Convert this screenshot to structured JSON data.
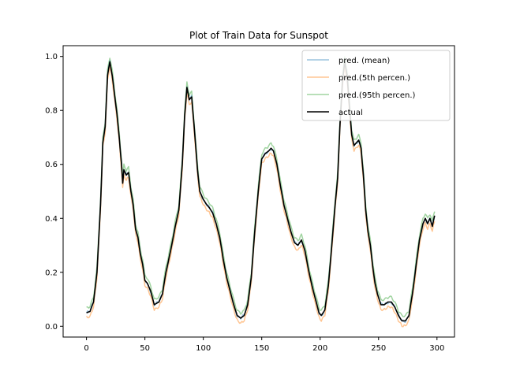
{
  "chart_data": {
    "type": "line",
    "title": "Plot of Train Data for Sunspot",
    "xlabel": "",
    "ylabel": "",
    "xlim": [
      -20,
      315
    ],
    "ylim": [
      -0.04,
      1.04
    ],
    "xticks": [
      0,
      50,
      100,
      150,
      200,
      250,
      300
    ],
    "yticks": [
      0.0,
      0.2,
      0.4,
      0.6,
      0.8,
      1.0
    ],
    "grid": false,
    "legend_position": "top-right",
    "colors": {
      "mean": "#1f77b4",
      "p5": "#ff7f0e",
      "p95": "#2ca02c",
      "actual": "#000000"
    },
    "keyframes": [
      [
        0,
        0.05
      ],
      [
        3,
        0.055
      ],
      [
        6,
        0.09
      ],
      [
        9,
        0.2
      ],
      [
        12,
        0.45
      ],
      [
        14,
        0.68
      ],
      [
        16,
        0.74
      ],
      [
        18,
        0.93
      ],
      [
        20,
        0.98
      ],
      [
        22,
        0.93
      ],
      [
        24,
        0.86
      ],
      [
        26,
        0.79
      ],
      [
        28,
        0.7
      ],
      [
        30,
        0.6
      ],
      [
        31,
        0.53
      ],
      [
        32,
        0.58
      ],
      [
        34,
        0.56
      ],
      [
        36,
        0.57
      ],
      [
        38,
        0.5
      ],
      [
        40,
        0.45
      ],
      [
        42,
        0.36
      ],
      [
        44,
        0.33
      ],
      [
        46,
        0.27
      ],
      [
        48,
        0.23
      ],
      [
        50,
        0.17
      ],
      [
        52,
        0.16
      ],
      [
        55,
        0.13
      ],
      [
        58,
        0.08
      ],
      [
        62,
        0.09
      ],
      [
        65,
        0.12
      ],
      [
        68,
        0.2
      ],
      [
        72,
        0.28
      ],
      [
        76,
        0.37
      ],
      [
        79,
        0.43
      ],
      [
        82,
        0.6
      ],
      [
        84,
        0.78
      ],
      [
        86,
        0.885
      ],
      [
        88,
        0.84
      ],
      [
        90,
        0.85
      ],
      [
        92,
        0.75
      ],
      [
        95,
        0.58
      ],
      [
        97,
        0.5
      ],
      [
        100,
        0.47
      ],
      [
        103,
        0.45
      ],
      [
        105,
        0.44
      ],
      [
        108,
        0.42
      ],
      [
        111,
        0.38
      ],
      [
        114,
        0.33
      ],
      [
        117,
        0.25
      ],
      [
        120,
        0.18
      ],
      [
        123,
        0.13
      ],
      [
        126,
        0.08
      ],
      [
        129,
        0.04
      ],
      [
        132,
        0.03
      ],
      [
        135,
        0.04
      ],
      [
        138,
        0.08
      ],
      [
        141,
        0.18
      ],
      [
        144,
        0.35
      ],
      [
        147,
        0.5
      ],
      [
        150,
        0.62
      ],
      [
        153,
        0.64
      ],
      [
        156,
        0.65
      ],
      [
        158,
        0.66
      ],
      [
        160,
        0.65
      ],
      [
        163,
        0.6
      ],
      [
        166,
        0.52
      ],
      [
        169,
        0.45
      ],
      [
        172,
        0.4
      ],
      [
        175,
        0.35
      ],
      [
        178,
        0.31
      ],
      [
        181,
        0.3
      ],
      [
        184,
        0.32
      ],
      [
        187,
        0.28
      ],
      [
        190,
        0.21
      ],
      [
        193,
        0.15
      ],
      [
        196,
        0.1
      ],
      [
        199,
        0.05
      ],
      [
        201,
        0.04
      ],
      [
        204,
        0.06
      ],
      [
        207,
        0.15
      ],
      [
        210,
        0.3
      ],
      [
        213,
        0.46
      ],
      [
        215,
        0.55
      ],
      [
        217,
        0.75
      ],
      [
        219,
        0.9
      ],
      [
        221,
        0.98
      ],
      [
        223,
        0.93
      ],
      [
        225,
        0.82
      ],
      [
        227,
        0.71
      ],
      [
        229,
        0.67
      ],
      [
        231,
        0.68
      ],
      [
        233,
        0.69
      ],
      [
        235,
        0.66
      ],
      [
        237,
        0.56
      ],
      [
        239,
        0.43
      ],
      [
        241,
        0.35
      ],
      [
        243,
        0.3
      ],
      [
        245,
        0.22
      ],
      [
        247,
        0.16
      ],
      [
        249,
        0.12
      ],
      [
        252,
        0.08
      ],
      [
        255,
        0.08
      ],
      [
        258,
        0.09
      ],
      [
        261,
        0.09
      ],
      [
        264,
        0.07
      ],
      [
        267,
        0.04
      ],
      [
        270,
        0.02
      ],
      [
        273,
        0.02
      ],
      [
        276,
        0.04
      ],
      [
        279,
        0.12
      ],
      [
        282,
        0.22
      ],
      [
        285,
        0.32
      ],
      [
        288,
        0.38
      ],
      [
        290,
        0.4
      ],
      [
        292,
        0.38
      ],
      [
        294,
        0.4
      ],
      [
        296,
        0.37
      ],
      [
        298,
        0.41
      ]
    ],
    "series": [
      {
        "name": "pred. (mean)"
      },
      {
        "name": "pred.(5th percen.)"
      },
      {
        "name": "pred.(95th percen.)"
      },
      {
        "name": "actual"
      }
    ]
  }
}
